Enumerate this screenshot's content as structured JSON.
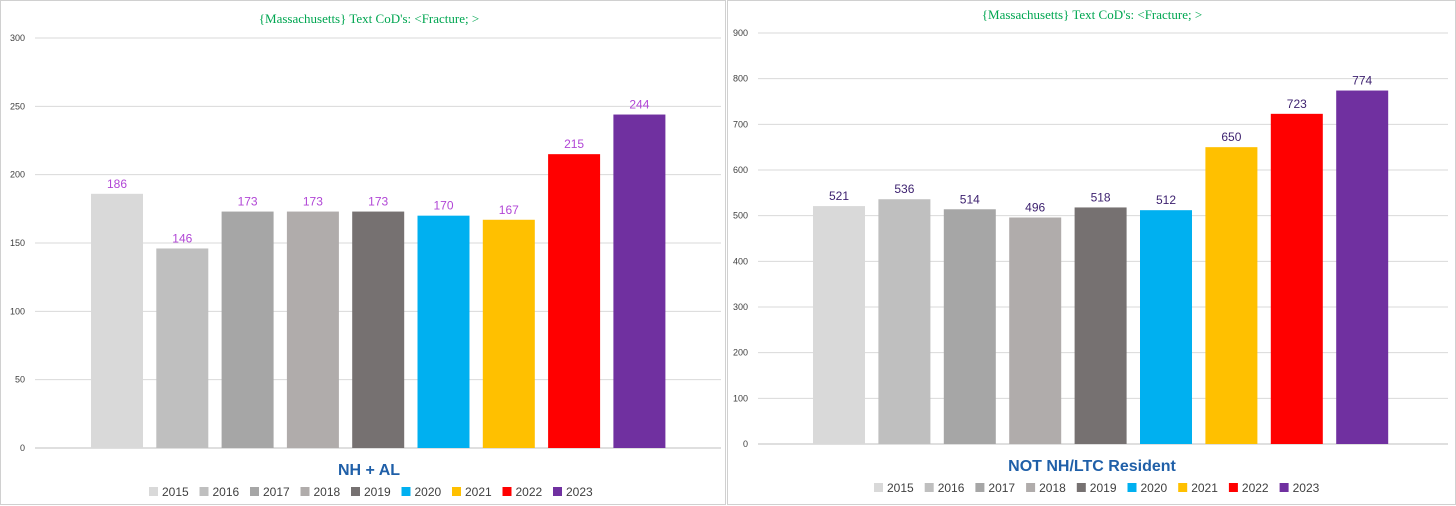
{
  "chart_data": [
    {
      "type": "bar",
      "title": "{Massachusetts}   Text CoD's: <Fracture; >",
      "subtitle": "NH + AL",
      "xlabel": "",
      "ylabel": "",
      "ylim": [
        0,
        300
      ],
      "yticks": [
        0,
        50,
        100,
        150,
        200,
        250,
        300
      ],
      "grid": true,
      "legend_position": "bottom",
      "label_color": "#b146d6",
      "categories": [
        "2015",
        "2016",
        "2017",
        "2018",
        "2019",
        "2020",
        "2021",
        "2022",
        "2023"
      ],
      "values": [
        186,
        146,
        173,
        173,
        173,
        170,
        167,
        215,
        244
      ],
      "colors": [
        "#d9d9d9",
        "#bfbfbf",
        "#a6a6a6",
        "#b0acab",
        "#767171",
        "#00b0f0",
        "#ffc000",
        "#ff0000",
        "#7030a0"
      ]
    },
    {
      "type": "bar",
      "title": "{Massachusetts}   Text CoD's: <Fracture; >",
      "subtitle": "NOT NH/LTC Resident",
      "xlabel": "",
      "ylabel": "",
      "ylim": [
        0,
        900
      ],
      "yticks": [
        0,
        100,
        200,
        300,
        400,
        500,
        600,
        700,
        800,
        900
      ],
      "grid": true,
      "legend_position": "bottom",
      "label_color": "#3b1f6e",
      "categories": [
        "2015",
        "2016",
        "2017",
        "2018",
        "2019",
        "2020",
        "2021",
        "2022",
        "2023"
      ],
      "values": [
        521,
        536,
        514,
        496,
        518,
        512,
        650,
        723,
        774
      ],
      "colors": [
        "#d9d9d9",
        "#bfbfbf",
        "#a6a6a6",
        "#b0acab",
        "#767171",
        "#00b0f0",
        "#ffc000",
        "#ff0000",
        "#7030a0"
      ]
    }
  ]
}
